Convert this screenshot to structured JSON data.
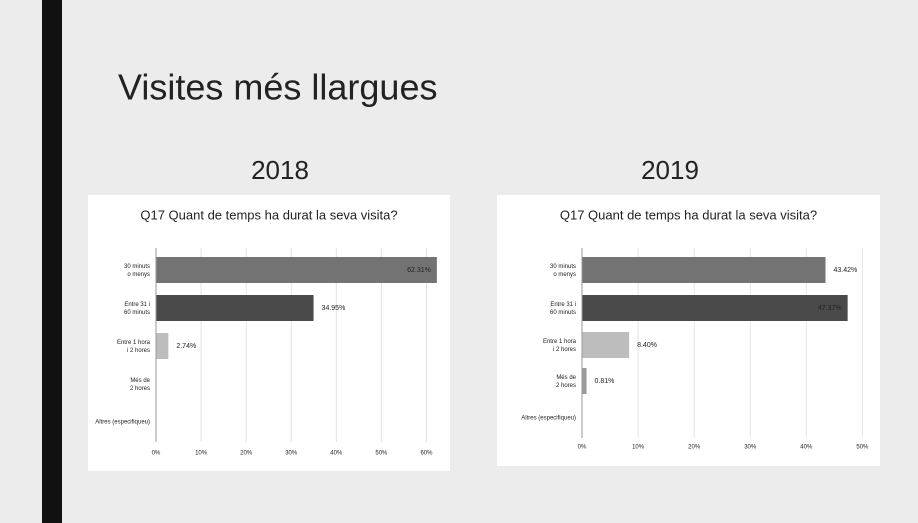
{
  "title": "Visites més llargues",
  "chart_data": [
    {
      "type": "bar",
      "label": "2018",
      "title": "Q17 Quant de temps ha durat la seva visita?",
      "categories": [
        "30 minuts o menys",
        "Entre 31 i 60 minuts",
        "Entre 1 hora i 2 hores",
        "Més de 2 hores",
        "Altres (especifiqueu)"
      ],
      "values": [
        62.31,
        34.95,
        2.74,
        0,
        0
      ],
      "value_labels": [
        "62.31%",
        "34.95%",
        "2.74%",
        null,
        null
      ],
      "colors": [
        "#737373",
        "#4a4a4a",
        "#bdbdbd",
        "#9a9a9a",
        "#9a9a9a"
      ],
      "xlim": [
        0,
        63
      ],
      "xticks": [
        {
          "value": 0,
          "label": "0%"
        },
        {
          "value": 10,
          "label": "10%"
        },
        {
          "value": 20,
          "label": "20%"
        },
        {
          "value": 30,
          "label": "30%"
        },
        {
          "value": 40,
          "label": "40%"
        },
        {
          "value": 50,
          "label": "50%"
        },
        {
          "value": 60,
          "label": "60%"
        }
      ],
      "grid": true
    },
    {
      "type": "bar",
      "label": "2019",
      "title": "Q17 Quant de temps ha durat la seva visita?",
      "categories": [
        "30 minuts o menys",
        "Entre 31 i 60 minuts",
        "Entre 1 hora i 2 hores",
        "Més de 2 hores",
        "Altres (especifiqueu)"
      ],
      "values": [
        43.42,
        47.37,
        8.4,
        0.81,
        0
      ],
      "value_labels": [
        "43.42%",
        "47.37%",
        "8.40%",
        "0.81%",
        null
      ],
      "colors": [
        "#737373",
        "#4a4a4a",
        "#bdbdbd",
        "#9a9a9a",
        "#9a9a9a"
      ],
      "xlim": [
        0,
        51
      ],
      "xticks": [
        {
          "value": 0,
          "label": "0%"
        },
        {
          "value": 10,
          "label": "10%"
        },
        {
          "value": 20,
          "label": "20%"
        },
        {
          "value": 30,
          "label": "30%"
        },
        {
          "value": 40,
          "label": "40%"
        },
        {
          "value": 50,
          "label": "50%"
        }
      ],
      "grid": true
    }
  ]
}
